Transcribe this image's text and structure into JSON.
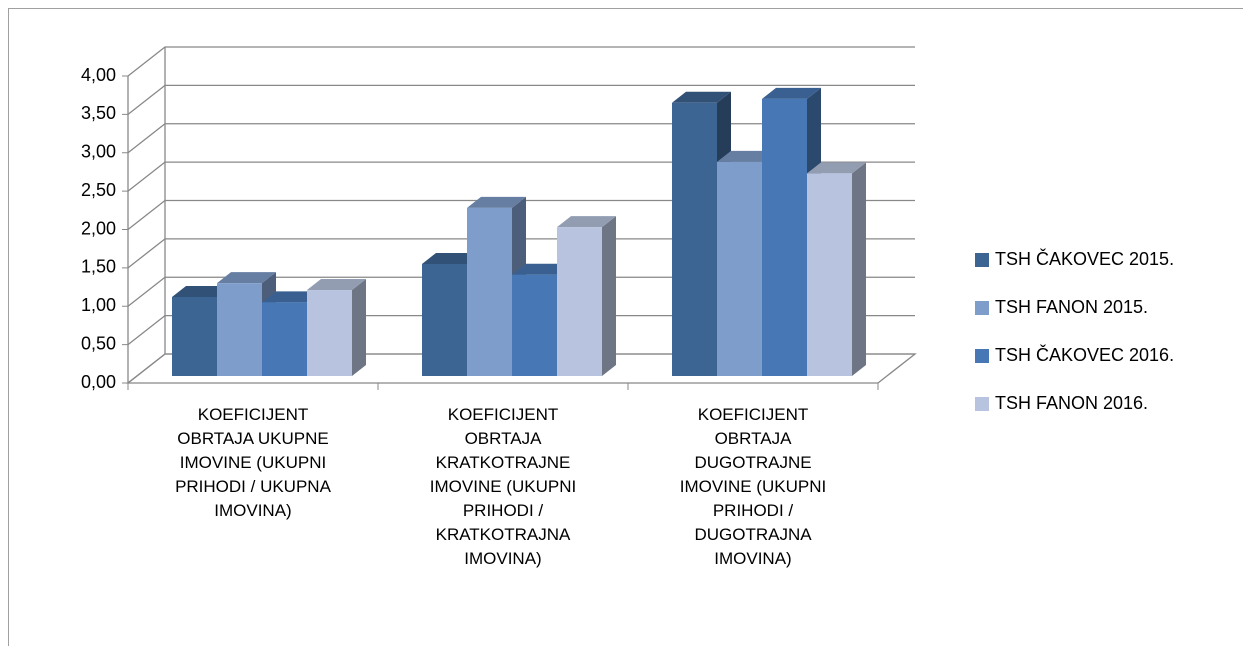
{
  "chart_data": {
    "type": "bar3d",
    "categories": [
      "KOEFICIJENT OBRTAJA UKUPNE IMOVINE (UKUPNI PRIHODI / UKUPNA IMOVINA)",
      "KOEFICIJENT OBRTAJA KRATKOTRAJNE IMOVINE (UKUPNI PRIHODI / KRATKOTRAJNA IMOVINA)",
      "KOEFICIJENT OBRTAJA DUGOTRAJNE IMOVINE (UKUPNI PRIHODI / DUGOTRAJNA IMOVINA)"
    ],
    "series": [
      {
        "name": "TSH ČAKOVEC 2015.",
        "color": "#3d6594",
        "values": [
          1.03,
          1.46,
          3.56
        ]
      },
      {
        "name": "TSH FANON 2015.",
        "color": "#7f9dcb",
        "values": [
          1.21,
          2.19,
          2.79
        ]
      },
      {
        "name": "TSH ČAKOVEC 2016.",
        "color": "#4778b5",
        "values": [
          0.96,
          1.32,
          3.61
        ]
      },
      {
        "name": "TSH FANON 2016.",
        "color": "#b8c4df",
        "values": [
          1.12,
          1.94,
          2.64
        ]
      }
    ],
    "ylim": [
      0,
      4
    ],
    "yticks": [
      {
        "value": 0,
        "label": "0,00"
      },
      {
        "value": 0.5,
        "label": "0,50"
      },
      {
        "value": 1,
        "label": "1,00"
      },
      {
        "value": 1.5,
        "label": "1,50"
      },
      {
        "value": 2,
        "label": "2,00"
      },
      {
        "value": 2.5,
        "label": "2,50"
      },
      {
        "value": 3,
        "label": "3,00"
      },
      {
        "value": 3.5,
        "label": "3,50"
      },
      {
        "value": 4,
        "label": "4,00"
      }
    ],
    "grid": true,
    "legend": "right"
  }
}
